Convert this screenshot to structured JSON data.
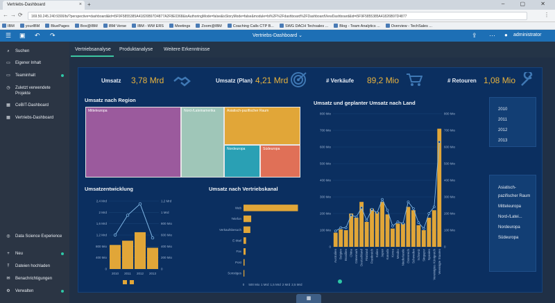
{
  "browser": {
    "tab_title": "Vertriebs-Dashboard",
    "tab_close": "×",
    "new_tab": "+",
    "win_controls": "– ▢ ✕",
    "url": "169.50.245.240:9300/bi/?perspective=dashboard&id=i5F9F5855385A41826B97D4877A2F8E0368&isAuthoringMode=false&isStoryMode=false&module=bi%2F%2Fdashboard%2FDashboardViewDashboard&id=i5F9F5855385A41826B97D4877",
    "back": "←",
    "forward": "→",
    "reload": "⟳",
    "menu": "⋮",
    "bookmarks": [
      "IBM",
      "yourIBM",
      "BluePages",
      "Box@IBM",
      "IBM Verse",
      "IBM - WW ERS",
      "Meetings",
      "Zoom@IBM",
      "Coaching Calls CTP B...",
      "SWG DACH Techsales ...",
      "Blog - Team Analytics ...",
      "Overview - TechSales ..."
    ]
  },
  "appbar": {
    "title": "Vertriebs-Dashboard",
    "title_chevron": "⌄",
    "user": "administrator",
    "icons": [
      "menu-icon",
      "save-icon",
      "undo-icon",
      "redo-icon",
      "share-icon",
      "more-icon",
      "notification-icon",
      "user-icon"
    ]
  },
  "sidebar": {
    "top_items": [
      {
        "label": "Suchen",
        "icon": "⌕"
      },
      {
        "label": "Eigener Inhalt",
        "icon": "▭"
      },
      {
        "label": "Teaminhalt",
        "icon": "▭"
      },
      {
        "label": "Zuletzt verwendete Projekte",
        "icon": "◷"
      },
      {
        "label": "CeBIT-Dashboard",
        "icon": "▦"
      },
      {
        "label": "Vertriebs-Dashboard",
        "icon": "▦"
      }
    ],
    "bottom_items": [
      {
        "label": "Data Science Experience",
        "icon": "◎"
      },
      {
        "label": "Neu",
        "icon": "+"
      },
      {
        "label": "Dateien hochladen",
        "icon": "⤒"
      },
      {
        "label": "Benachrichtigungen",
        "icon": "✉"
      },
      {
        "label": "Verwalten",
        "icon": "⚙"
      }
    ]
  },
  "view_tabs": [
    "Vertriebsanalyse",
    "Produktanalyse",
    "Weitere Erkenntnisse"
  ],
  "kpis": [
    {
      "label": "Umsatz",
      "value": "3,78 Mrd",
      "icon": "handshake-icon"
    },
    {
      "label": "Umsatz (Plan)",
      "value": "4,21 Mrd",
      "icon": "target-icon"
    },
    {
      "label": "# Verkäufe",
      "value": "89,2 Mio",
      "icon": "cart-icon"
    },
    {
      "label": "# Retouren",
      "value": "1,08 Mio",
      "icon": "wrench-icon"
    }
  ],
  "treemap": {
    "title": "Umsatz nach Region",
    "tiles": [
      {
        "label": "Mitteleuropa",
        "color": "#9b5a9d"
      },
      {
        "label": "Nord-/Lateinamerika",
        "color": "#9fc6b8"
      },
      {
        "label": "Asiatisch-pazifischer Raum",
        "color": "#e1a638"
      },
      {
        "label": "Nordeuropa",
        "color": "#2aa0b4"
      },
      {
        "label": "Südeuropa",
        "color": "#e07057"
      }
    ]
  },
  "chart_data": [
    {
      "type": "bar",
      "title": "Umsatzentwicklung",
      "categories": [
        "2010",
        "2011",
        "2012",
        "2013"
      ],
      "series": [
        {
          "name": "",
          "type": "bar",
          "values": [
            0.85,
            1.0,
            1.3,
            0.75
          ],
          "color": "#e1a638"
        },
        {
          "name": "",
          "type": "line",
          "values": [
            0.6,
            0.95,
            1.15,
            0.55
          ],
          "color": "#7fb7e6"
        }
      ],
      "y_left_ticks": [
        "0",
        "400 Mio",
        "800 Mio",
        "1,2 Mrd",
        "1,6 Mrd",
        "2 Mrd",
        "2,4 Mrd"
      ],
      "y_right_ticks": [
        "0",
        "200 Mio",
        "400 Mio",
        "600 Mio",
        "800 Mio",
        "1 Mrd",
        "1,2 Mrd"
      ],
      "ylim": [
        0,
        2.4
      ],
      "y2lim": [
        0,
        1.2
      ]
    },
    {
      "type": "bar",
      "orientation": "horizontal",
      "title": "Umsatz nach Vertriebskanal",
      "categories": [
        "Web",
        "Telefon",
        "Verkaufsbesuch",
        "E-Mail",
        "Fax",
        "Post",
        "Sonstiges"
      ],
      "values": [
        2.55,
        0.36,
        0.32,
        0.12,
        0.1,
        0.05,
        0.04
      ],
      "x_ticks": [
        "0",
        "500 Mio",
        "1 Mrd",
        "1,5 Mrd",
        "2 Mrd",
        "2,5 Mrd"
      ],
      "xlim": [
        0,
        2.6
      ],
      "color": "#e1a638"
    },
    {
      "type": "bar",
      "title": "Umsatz und geplanter Umsatz nach Land",
      "categories": [
        "Australien",
        "Belgien",
        "Brasilien",
        "China",
        "Dänemark",
        "Deutschland",
        "Finnland",
        "Frankreich",
        "Italien",
        "Japan",
        "Kanada",
        "Korea",
        "Mexiko",
        "Niederlande",
        "Österreich",
        "Schweden",
        "Schweiz",
        "Singapur",
        "Spanien",
        "Vereinigtes Königreich",
        "Vereinigte Staaten"
      ],
      "series": [
        {
          "name": "",
          "type": "bar",
          "values": [
            85,
            105,
            100,
            200,
            175,
            270,
            150,
            230,
            210,
            270,
            195,
            110,
            140,
            140,
            240,
            220,
            130,
            100,
            175,
            220,
            710
          ],
          "color": "#e1a638"
        },
        {
          "name": "",
          "type": "line",
          "values": [
            95,
            115,
            115,
            190,
            180,
            235,
            160,
            225,
            205,
            285,
            220,
            125,
            150,
            140,
            270,
            230,
            145,
            110,
            200,
            240,
            630
          ],
          "color": "#7fb7e6"
        }
      ],
      "y_ticks": [
        "0",
        "100 Mio",
        "200 Mio",
        "300 Mio",
        "400 Mio",
        "500 Mio",
        "600 Mio",
        "700 Mio",
        "800 Mio"
      ],
      "ylim": [
        0,
        800
      ]
    }
  ],
  "filters": {
    "years": [
      "2010",
      "2011",
      "2012",
      "2013"
    ],
    "regions": [
      "Asiatisch-pazifischer Raum",
      "Mitteleuropa",
      "Nord-/Latei...",
      "Nordeuropa",
      "Südeuropa"
    ]
  },
  "bottom_button": {
    "icon": "grid-icon",
    "glyph": "▦"
  }
}
